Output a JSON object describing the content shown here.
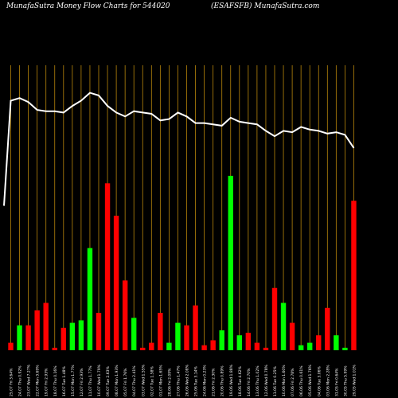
{
  "header": {
    "left": "MunafaSutra  Money Flow  Charts for 544020",
    "right": "(ESAFSFB) MunafaSutra.com"
  },
  "colors": {
    "background": "#000000",
    "up": "#00ff00",
    "down": "#ff0000",
    "price_line": "#ffffff",
    "grid": "#b8860b",
    "text": "#ffffff"
  },
  "chart_data": {
    "type": "bar",
    "series": [
      {
        "values": [
          3,
          10,
          10,
          16,
          19,
          1,
          9,
          11,
          12,
          41,
          15,
          67,
          54,
          28,
          13,
          1,
          3,
          15,
          3,
          11,
          10,
          18,
          2,
          4,
          8,
          70,
          6,
          7,
          3,
          1,
          25,
          19,
          11,
          2,
          3,
          6,
          17,
          6,
          1,
          60
        ]
      },
      {
        "values": [
          190,
          192,
          189,
          183,
          182,
          182,
          181,
          186,
          190,
          196,
          194,
          186,
          181,
          178,
          182,
          181,
          180,
          175,
          176,
          181,
          178,
          173,
          173,
          172,
          171,
          177,
          174,
          173,
          172,
          167,
          163,
          167,
          166,
          170,
          168,
          167,
          165,
          166,
          164,
          154
        ]
      }
    ],
    "bar_colors": [
      "down",
      "up",
      "down",
      "down",
      "down",
      "down",
      "down",
      "up",
      "up",
      "up",
      "down",
      "down",
      "down",
      "down",
      "up",
      "down",
      "down",
      "down",
      "up",
      "up",
      "down",
      "down",
      "down",
      "down",
      "up",
      "up",
      "up",
      "down",
      "down",
      "down",
      "down",
      "up",
      "down",
      "up",
      "up",
      "down",
      "down",
      "up",
      "up",
      "down"
    ],
    "price_start": 110,
    "categories": [
      "25.07 Fri 3.64%",
      "24.07 Thu 0.92%",
      "23.07 Wed 7.27%",
      "22.07 Mon 3.69%",
      "19.07 Fri 2.93%",
      "18.07 Thu 0.16%",
      "16.07 Tue 1.48%",
      "15.07 Mon 1.77%",
      "12.07 Fri 2.93%",
      "11.07 Thu 1.77%",
      "10.07 Wed 1.79%",
      "09.07 Tue 2.63%",
      "08.07 Mon 1.93%",
      "05.07 Fri 1.76%",
      "04.07 Thu 2.41%",
      "03.07 Wed 1.55%",
      "02.07 Tue 1.58%",
      "01.07 Mon 1.65%",
      "28.06 Fri 2.09%",
      "27.06 Thu 1.47%",
      "26.06 Wed 2.08%",
      "25.06 Tue 3.14%",
      "24.06 Mon 0.23%",
      "21.06 Fri 2.30%",
      "20.06 Thu 0.89%",
      "19.06 Wed 1.88%",
      "18.06 Tue 4.62%",
      "14.06 Fri 2.70%",
      "13.06 Thu 1.02%",
      "12.06 Wed 0.78%",
      "11.06 Tue 0.25%",
      "10.06 Mon 1.60%",
      "07.06 Fri 2.78%",
      "06.06 Thu 0.61%",
      "05.06 Wed 1.76%",
      "04.06 Tue 3.06%",
      "03.06 Mon 2.28%",
      "31.05 Fri 0.64%",
      "30.05 Thu 5.99%",
      "29.05 Wed 1.01%"
    ]
  }
}
